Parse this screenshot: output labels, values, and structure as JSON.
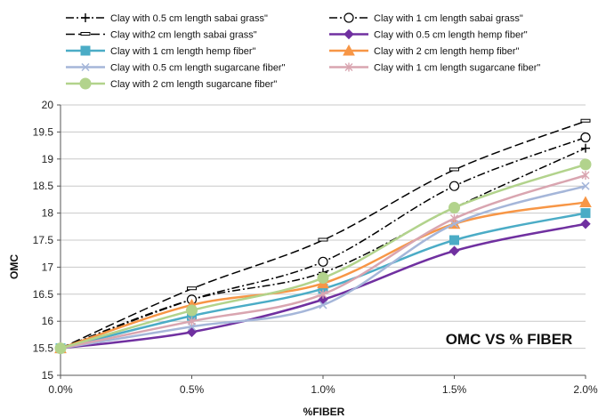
{
  "chart_data": {
    "type": "line",
    "title": "",
    "xlabel": "%FIBER",
    "ylabel": "OMC",
    "annotation": "OMC VS % FIBER",
    "x": [
      0,
      0.5,
      1.0,
      1.5,
      2.0
    ],
    "x_tick_labels": [
      "0.0%",
      "0.5%",
      "1.0%",
      "1.5%",
      "2.0%"
    ],
    "ylim": [
      15,
      20
    ],
    "y_ticks": [
      "15",
      "15.5",
      "16",
      "16.5",
      "17",
      "17.5",
      "18",
      "18.5",
      "19",
      "19.5",
      "20"
    ],
    "grid": "horizontal",
    "legend_position": "top",
    "series": [
      {
        "name": "Clay with 0.5 cm length  sabai  grass\"",
        "values": [
          15.5,
          16.4,
          16.9,
          18.1,
          19.2
        ],
        "color": "#000000",
        "dash": "dash-dot",
        "marker": "plus"
      },
      {
        "name": "Clay with 1 cm length  sabai  grass\"",
        "values": [
          15.5,
          16.4,
          17.1,
          18.5,
          19.4
        ],
        "color": "#000000",
        "dash": "dash-dot",
        "marker": "circle-open"
      },
      {
        "name": "Clay with2 cm length  sabai  grass\"",
        "values": [
          15.5,
          16.6,
          17.5,
          18.8,
          19.7
        ],
        "color": "#000000",
        "dash": "long-dash",
        "marker": "bar"
      },
      {
        "name": "Clay with 0.5 cm length  hemp fiber\"",
        "values": [
          15.5,
          15.8,
          16.4,
          17.3,
          17.8
        ],
        "color": "#7030a0",
        "dash": "solid",
        "marker": "diamond"
      },
      {
        "name": "Clay with 1 cm length  hemp fiber\"",
        "values": [
          15.5,
          16.1,
          16.6,
          17.5,
          18.0
        ],
        "color": "#4bacc6",
        "dash": "solid",
        "marker": "square"
      },
      {
        "name": "Clay with 2 cm length  hemp fiber\"",
        "values": [
          15.5,
          16.3,
          16.7,
          17.8,
          18.2
        ],
        "color": "#f79646",
        "dash": "solid",
        "marker": "triangle"
      },
      {
        "name": "Clay with 0.5 cm length  sugarcane  fiber\"",
        "values": [
          15.5,
          15.9,
          16.3,
          17.8,
          18.5
        ],
        "color": "#a5b6d9",
        "dash": "solid",
        "marker": "x"
      },
      {
        "name": "Clay with 1 cm length  sugarcane  fiber\"",
        "values": [
          15.5,
          16.0,
          16.5,
          17.9,
          18.7
        ],
        "color": "#d9a5b0",
        "dash": "solid",
        "marker": "star"
      },
      {
        "name": "Clay with 2 cm length  sugarcane  fiber\"",
        "values": [
          15.5,
          16.2,
          16.8,
          18.1,
          18.9
        ],
        "color": "#b2d38c",
        "dash": "solid",
        "marker": "circle"
      }
    ]
  }
}
